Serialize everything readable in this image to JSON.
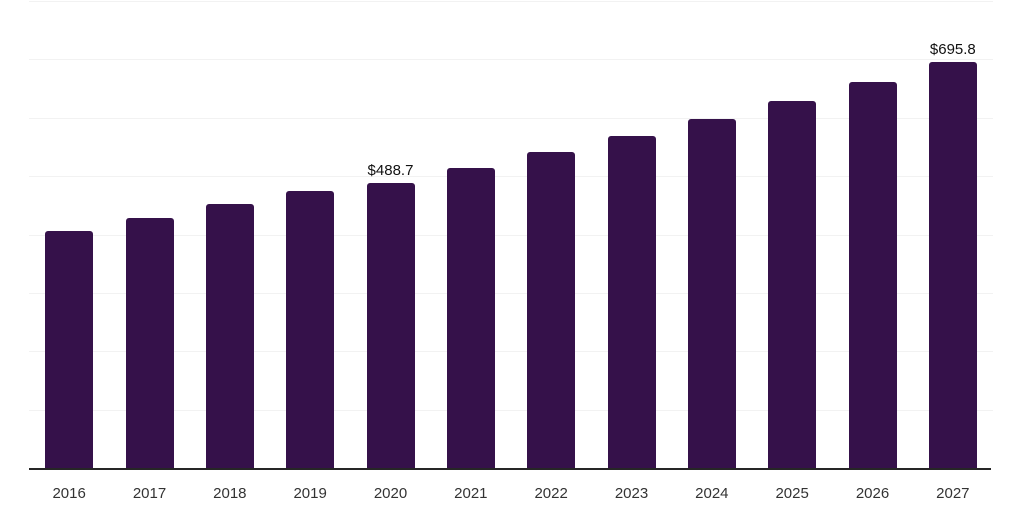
{
  "chart_data": {
    "type": "bar",
    "title": "",
    "xlabel": "",
    "ylabel": "",
    "categories": [
      "2016",
      "2017",
      "2018",
      "2019",
      "2020",
      "2021",
      "2022",
      "2023",
      "2024",
      "2025",
      "2026",
      "2027"
    ],
    "values": [
      405.8,
      428.0,
      452.0,
      475.2,
      488.7,
      513.9,
      540.6,
      568.6,
      598.0,
      629.0,
      661.5,
      695.8
    ],
    "data_labels": [
      null,
      null,
      null,
      null,
      "$488.7",
      null,
      null,
      null,
      null,
      null,
      null,
      "$695.8"
    ],
    "ylim": [
      0,
      800
    ],
    "gridline_step": 100,
    "grid": "horizontal",
    "legend": "none",
    "colors": {
      "bar": "#35114A",
      "gridline": "#f2f2f2",
      "axis_line": "#262626",
      "tick_label": "#333333",
      "data_label": "#111111",
      "background": "#ffffff"
    }
  }
}
